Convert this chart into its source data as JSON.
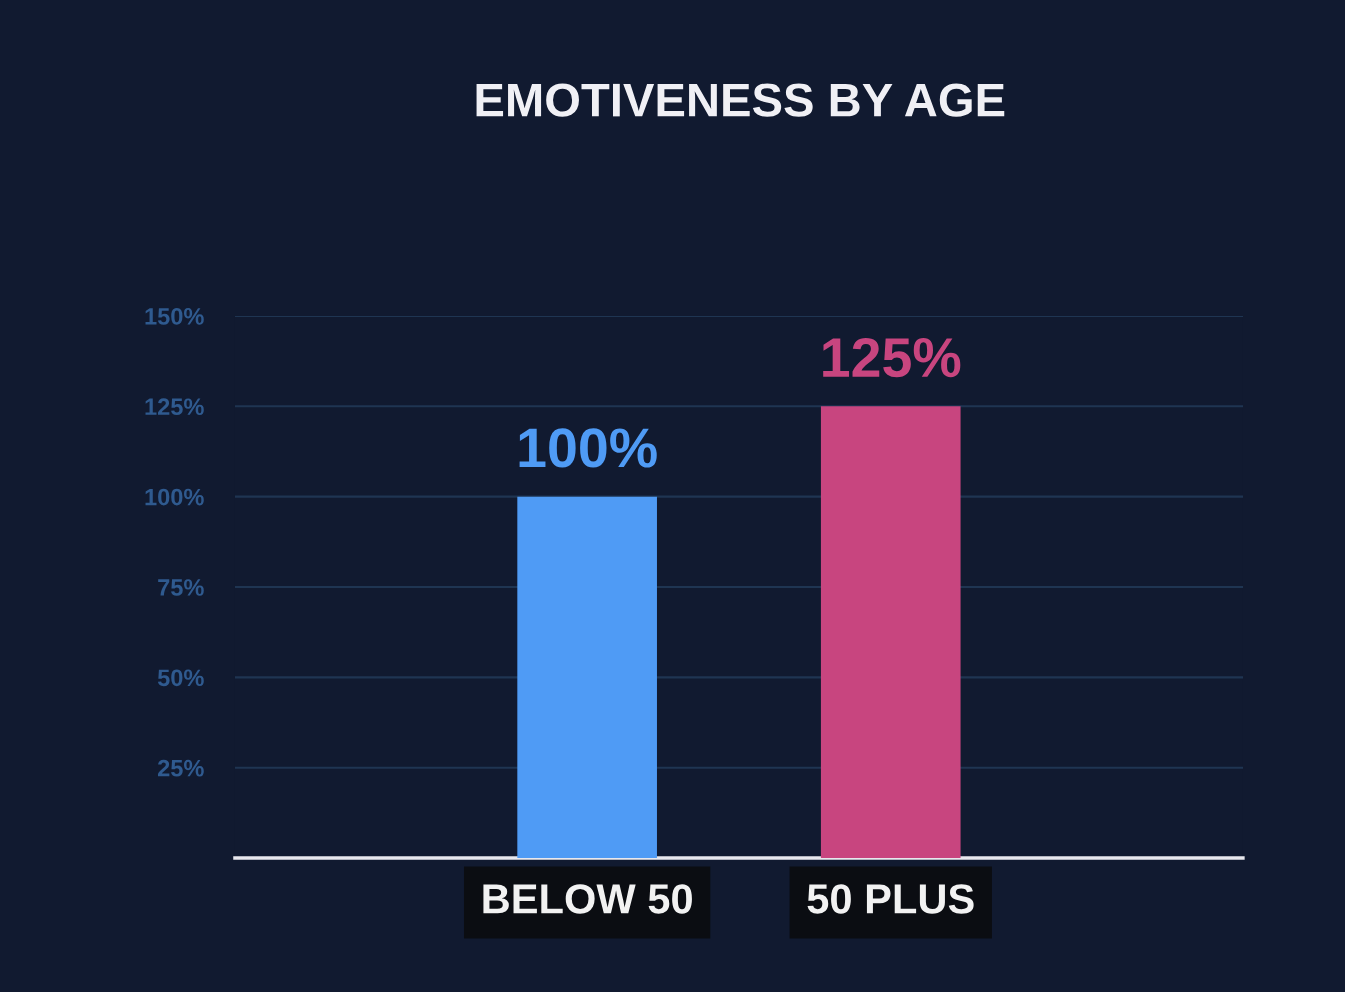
{
  "chart_data": {
    "type": "bar",
    "title": "EMOTIVENESS BY AGE",
    "categories": [
      "BELOW 50",
      "50 PLUS"
    ],
    "values": [
      100,
      125
    ],
    "colors": [
      "#4f9bf5",
      "#c8457f"
    ],
    "value_labels": [
      "100%",
      "125%"
    ],
    "ylim": [
      0,
      150
    ],
    "yticks": [
      {
        "value": 25,
        "label": "25%"
      },
      {
        "value": 50,
        "label": "50%"
      },
      {
        "value": 75,
        "label": "75%"
      },
      {
        "value": 100,
        "label": "100%"
      },
      {
        "value": 125,
        "label": "125%"
      },
      {
        "value": 150,
        "label": "150%"
      }
    ],
    "grid": "y"
  }
}
